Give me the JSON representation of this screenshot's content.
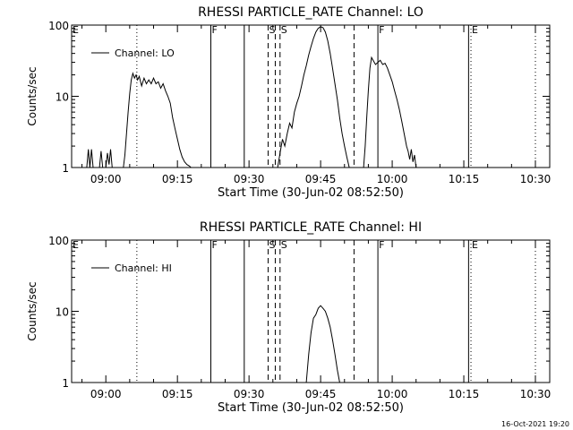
{
  "footer": {
    "timestamp": "16-Oct-2021 19:20"
  },
  "chart_data": [
    {
      "type": "line",
      "title": "RHESSI PARTICLE_RATE Channel: LO",
      "xlabel": "Start Time (30-Jun-02 08:52:50)",
      "ylabel": "Counts/sec",
      "y_scale": "log",
      "ylim": [
        1,
        100
      ],
      "y_ticks": [
        "1",
        "10",
        "100"
      ],
      "xlim": [
        "08:52:50",
        "10:33:00"
      ],
      "x_ticks": [
        "09:00",
        "09:15",
        "09:30",
        "09:45",
        "10:00",
        "10:15",
        "10:30"
      ],
      "legend": {
        "position": "top-left",
        "entries": [
          "Channel: LO"
        ]
      },
      "markers": [
        {
          "time": "08:52:50",
          "style": "solid",
          "label": "E"
        },
        {
          "time": "09:06:30",
          "style": "dotted",
          "label": ""
        },
        {
          "time": "09:22:00",
          "style": "solid",
          "label": "F"
        },
        {
          "time": "09:29:00",
          "style": "solid",
          "label": ""
        },
        {
          "time": "09:34:00",
          "style": "dashed",
          "label": "S"
        },
        {
          "time": "09:35:30",
          "style": "dashed",
          "label": ""
        },
        {
          "time": "09:36:30",
          "style": "dashed",
          "label": "S"
        },
        {
          "time": "09:52:00",
          "style": "dashed",
          "label": ""
        },
        {
          "time": "09:57:00",
          "style": "solid",
          "label": "F"
        },
        {
          "time": "10:16:00",
          "style": "solid",
          "label": ""
        },
        {
          "time": "10:16:30",
          "style": "dotted",
          "label": "E"
        },
        {
          "time": "10:30:00",
          "style": "dotted",
          "label": ""
        }
      ],
      "series": [
        {
          "name": "Channel: LO",
          "segments": [
            {
              "x": [
                "08:56:00",
                "08:56:20",
                "08:56:40",
                "08:57:00",
                "08:57:20"
              ],
              "y": [
                1,
                1.8,
                1,
                1.8,
                1
              ]
            },
            {
              "x": [
                "08:58:40",
                "08:59:00",
                "08:59:20"
              ],
              "y": [
                1,
                1.7,
                1
              ]
            },
            {
              "x": [
                "09:00:00",
                "09:00:20",
                "09:00:40",
                "09:01:00",
                "09:01:20"
              ],
              "y": [
                1,
                1.6,
                1.1,
                1.8,
                1
              ]
            },
            {
              "x": [
                "09:03:40",
                "09:04:00",
                "09:04:20",
                "09:04:40",
                "09:05:00",
                "09:05:20",
                "09:05:40",
                "09:06:00",
                "09:06:20",
                "09:06:40",
                "09:07:00",
                "09:07:30",
                "09:08:00",
                "09:08:30",
                "09:09:00",
                "09:09:30",
                "09:10:00",
                "09:10:30",
                "09:11:00",
                "09:11:30",
                "09:12:00",
                "09:12:30",
                "09:13:00",
                "09:13:30",
                "09:14:00",
                "09:14:30",
                "09:15:00",
                "09:15:30",
                "09:16:00",
                "09:16:30",
                "09:17:00",
                "09:17:30",
                "09:17:50"
              ],
              "y": [
                1,
                1.5,
                3,
                6,
                11,
                17,
                21,
                18,
                20,
                17,
                19,
                14,
                18,
                15,
                17,
                15,
                18,
                15,
                16,
                13,
                15,
                12,
                10,
                8,
                5,
                3.5,
                2.5,
                1.8,
                1.4,
                1.2,
                1.1,
                1.05,
                1
              ]
            },
            {
              "x": [
                "09:36:00",
                "09:36:30",
                "09:37:00",
                "09:37:30",
                "09:38:00",
                "09:38:30",
                "09:39:00",
                "09:39:30",
                "09:40:00",
                "09:40:30",
                "09:41:00",
                "09:41:30",
                "09:42:00",
                "09:42:30",
                "09:43:00",
                "09:43:30",
                "09:44:00",
                "09:44:30",
                "09:45:00",
                "09:45:30",
                "09:46:00",
                "09:46:30",
                "09:47:00",
                "09:47:30",
                "09:48:00",
                "09:48:30",
                "09:49:00",
                "09:49:30",
                "09:50:00",
                "09:50:30",
                "09:51:00"
              ],
              "y": [
                1,
                1.6,
                2.5,
                2.0,
                3.0,
                4.2,
                3.6,
                6,
                8,
                10,
                14,
                20,
                27,
                38,
                50,
                65,
                80,
                90,
                95,
                92,
                80,
                60,
                40,
                25,
                15,
                9,
                5,
                3,
                2,
                1.4,
                1
              ]
            },
            {
              "x": [
                "09:54:00",
                "09:54:20",
                "09:54:40",
                "09:55:00",
                "09:55:20",
                "09:55:40",
                "09:56:00",
                "09:56:30",
                "09:57:00",
                "09:57:30",
                "09:58:00",
                "09:58:30",
                "09:59:00",
                "09:59:30",
                "10:00:00",
                "10:00:30",
                "10:01:00",
                "10:01:30",
                "10:02:00",
                "10:02:30",
                "10:03:00",
                "10:03:20",
                "10:03:40",
                "10:04:00",
                "10:04:20",
                "10:04:40",
                "10:05:00"
              ],
              "y": [
                1,
                2,
                5,
                12,
                25,
                35,
                32,
                28,
                30,
                32,
                28,
                29,
                25,
                20,
                16,
                12,
                9,
                6.5,
                4.5,
                3,
                2,
                1.7,
                1.3,
                1.8,
                1.2,
                1.5,
                1
              ]
            }
          ]
        }
      ]
    },
    {
      "type": "line",
      "title": "RHESSI PARTICLE_RATE Channel: HI",
      "xlabel": "Start Time (30-Jun-02 08:52:50)",
      "ylabel": "Counts/sec",
      "y_scale": "log",
      "ylim": [
        1,
        100
      ],
      "y_ticks": [
        "1",
        "10",
        "100"
      ],
      "xlim": [
        "08:52:50",
        "10:33:00"
      ],
      "x_ticks": [
        "09:00",
        "09:15",
        "09:30",
        "09:45",
        "10:00",
        "10:15",
        "10:30"
      ],
      "legend": {
        "position": "top-left",
        "entries": [
          "Channel: HI"
        ]
      },
      "markers": [
        {
          "time": "08:52:50",
          "style": "solid",
          "label": "E"
        },
        {
          "time": "09:06:30",
          "style": "dotted",
          "label": ""
        },
        {
          "time": "09:22:00",
          "style": "solid",
          "label": "F"
        },
        {
          "time": "09:29:00",
          "style": "solid",
          "label": ""
        },
        {
          "time": "09:34:00",
          "style": "dashed",
          "label": "S"
        },
        {
          "time": "09:35:30",
          "style": "dashed",
          "label": ""
        },
        {
          "time": "09:36:30",
          "style": "dashed",
          "label": "S"
        },
        {
          "time": "09:52:00",
          "style": "dashed",
          "label": ""
        },
        {
          "time": "09:57:00",
          "style": "solid",
          "label": "F"
        },
        {
          "time": "10:16:00",
          "style": "solid",
          "label": ""
        },
        {
          "time": "10:16:30",
          "style": "dotted",
          "label": "E"
        },
        {
          "time": "10:30:00",
          "style": "dotted",
          "label": ""
        }
      ],
      "series": [
        {
          "name": "Channel: HI",
          "segments": [
            {
              "x": [
                "09:42:00",
                "09:42:30",
                "09:43:00",
                "09:43:30",
                "09:44:00",
                "09:44:30",
                "09:45:00",
                "09:45:30",
                "09:46:00",
                "09:46:30",
                "09:47:00",
                "09:47:30",
                "09:48:00",
                "09:48:30",
                "09:49:00"
              ],
              "y": [
                1,
                2.5,
                5,
                8,
                9,
                11,
                12,
                11,
                10,
                8,
                6,
                4,
                2.5,
                1.5,
                1
              ]
            }
          ]
        }
      ]
    }
  ]
}
